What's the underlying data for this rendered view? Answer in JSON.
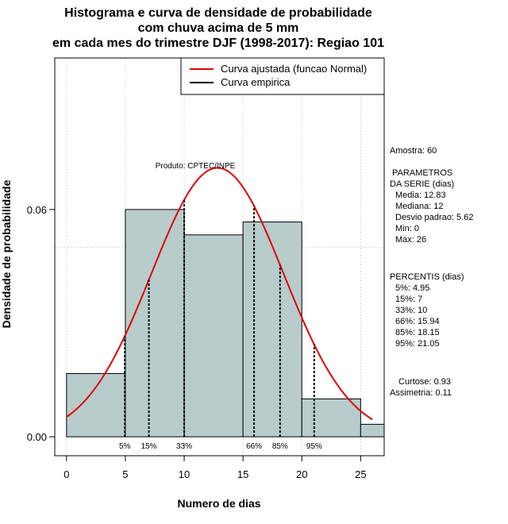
{
  "chart_data": {
    "type": "histogram",
    "title_lines": [
      "Histograma e curva de densidade de probabilidade",
      "com chuva acima de 5 mm",
      "em cada mes do trimestre DJF (1998-2017): Regiao 101"
    ],
    "xlabel": "Numero de dias",
    "ylabel": "Densidade de probabilidade",
    "xlim": [
      -1,
      27
    ],
    "ylim": [
      -0.005,
      0.1
    ],
    "xticks": [
      0,
      5,
      10,
      15,
      20,
      25
    ],
    "yticks": [
      0.0,
      0.06
    ],
    "ytick_labels": [
      "0.00",
      "0.06"
    ],
    "grid_x": [
      0,
      5,
      10,
      15,
      20,
      25
    ],
    "grid_y": [
      0.05,
      0.1
    ],
    "bins": [
      {
        "from": 0,
        "to": 5,
        "density": 0.0167
      },
      {
        "from": 5,
        "to": 10,
        "density": 0.06
      },
      {
        "from": 10,
        "to": 15,
        "density": 0.0533
      },
      {
        "from": 15,
        "to": 20,
        "density": 0.0567
      },
      {
        "from": 20,
        "to": 25,
        "density": 0.01
      },
      {
        "from": 25,
        "to": 27,
        "density": 0.0033
      }
    ],
    "normal_curve": {
      "mean": 12.83,
      "sd": 5.62,
      "x_from": 0,
      "x_to": 26
    },
    "percentile_lines": [
      {
        "label": "5%",
        "x": 4.95
      },
      {
        "label": "15%",
        "x": 7
      },
      {
        "label": "33%",
        "x": 10
      },
      {
        "label": "66%",
        "x": 15.94
      },
      {
        "label": "85%",
        "x": 18.15
      },
      {
        "label": "95%",
        "x": 21.05
      }
    ],
    "legend": [
      {
        "label": "Curva ajustada (funcao Normal)",
        "color": "#e00000"
      },
      {
        "label": "Curva empirica",
        "color": "#000000"
      }
    ],
    "annotation": "Produto: CPTEC/INPE",
    "stats_lines": [
      "Amostra: 60",
      " PARAMETROS",
      "DA SERIE (dias)",
      "Media: 12.83",
      "Mediana: 12",
      "Desvio padrao: 5.62",
      "Min: 0",
      "Max: 26",
      "PERCENTIS (dias)",
      "5%: 4.95",
      "15%: 7",
      "33%: 10",
      "66%: 15.94",
      "85%: 18.15",
      "95%: 21.05",
      "Curtose: 0.93",
      "Assimetria: 0.11"
    ],
    "colors": {
      "bar_fill": "#b8cccc",
      "curve": "#e00000",
      "grid": "#bbbbbb"
    }
  }
}
